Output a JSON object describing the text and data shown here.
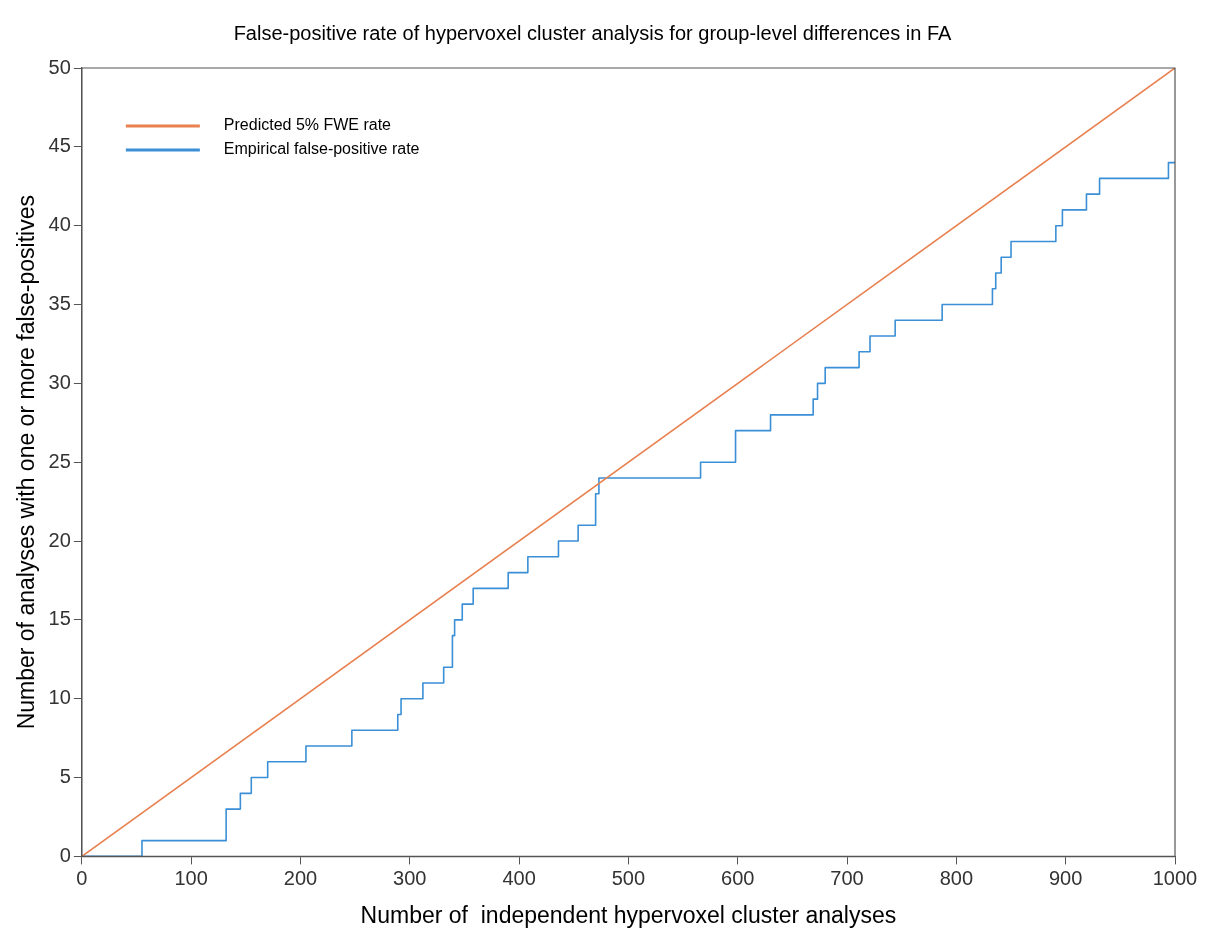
{
  "chart_data": {
    "type": "line",
    "title": "False-positive rate of hypervoxel cluster analysis for group-level differences in FA",
    "xlabel": "Number of  independent hypervoxel cluster analyses",
    "ylabel": "Number of analyses with one or more false-positives",
    "xlim": [
      0,
      1000
    ],
    "xticks": [
      0,
      100,
      200,
      300,
      400,
      500,
      600,
      700,
      800,
      900,
      1000
    ],
    "ylim": [
      0,
      50
    ],
    "yticks": [
      0,
      5,
      10,
      15,
      20,
      25,
      30,
      35,
      40,
      45,
      50
    ],
    "grid": false,
    "legend": "top left",
    "marker": "none",
    "line_style": "solid",
    "series": [
      {
        "name": "Predicted 5% FWE rate",
        "color": "#e8804f",
        "type": "line",
        "x": [
          0,
          1000
        ],
        "values": [
          0,
          50
        ]
      },
      {
        "name": "Empirical false-positive rate",
        "color": "#3a8fd6",
        "type": "step",
        "x": [
          0,
          55,
          132,
          145,
          155,
          170,
          205,
          247,
          289,
          292,
          312,
          331,
          339,
          341,
          348,
          358,
          390,
          408,
          436,
          454,
          470,
          473,
          566,
          598,
          630,
          669,
          673,
          680,
          711,
          721,
          744,
          787,
          833,
          836,
          841,
          850,
          891,
          897,
          919,
          931,
          994,
          1000
        ],
        "values": [
          0,
          1,
          3,
          4,
          5,
          6,
          7,
          8,
          9,
          10,
          11,
          12,
          14,
          15,
          16,
          17,
          18,
          19,
          20,
          21,
          23,
          24,
          25,
          27,
          28,
          29,
          30,
          31,
          32,
          33,
          34,
          35,
          36,
          37,
          38,
          39,
          40,
          41,
          42,
          43,
          44,
          44
        ]
      }
    ]
  }
}
